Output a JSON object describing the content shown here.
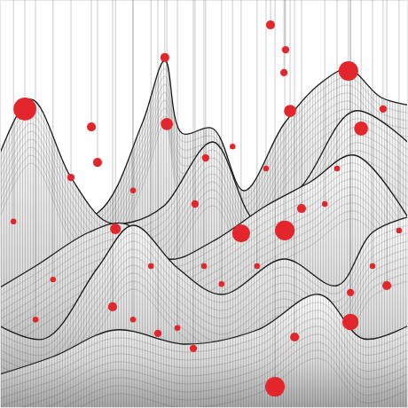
{
  "chart_data": {
    "type": "scatter",
    "x": [
      6.1,
      40.4,
      66.3,
      85.4,
      71.1,
      88.5,
      40.9,
      22.4,
      23.9,
      69.6,
      70.0,
      93.9,
      50.4,
      59.1,
      69.8,
      28.3,
      47.8,
      73.9,
      17.4,
      32.6,
      57.0,
      79.6,
      91.3,
      94.8,
      85.9,
      85.9,
      27.6,
      38.7,
      43.5,
      47.4,
      32.6,
      67.4,
      72.2,
      13.0,
      8.7,
      54.3,
      63.0,
      82.6,
      65.2,
      37.0,
      50.0,
      97.8,
      3.3
    ],
    "values": [
      73.3,
      85.9,
      93.9,
      82.6,
      72.8,
      68.5,
      69.6,
      68.9,
      60.2,
      82.2,
      87.8,
      73.3,
      61.3,
      42.8,
      43.5,
      43.9,
      50.0,
      48.9,
      56.5,
      53.3,
      64.1,
      50.0,
      34.8,
      30.0,
      21.1,
      28.3,
      24.8,
      18.3,
      19.6,
      14.6,
      21.7,
      5.2,
      17.4,
      31.5,
      21.7,
      30.4,
      34.8,
      58.7,
      58.7,
      34.8,
      34.8,
      43.5,
      45.7
    ],
    "sizes": [
      2.8,
      1.1,
      1.1,
      2.4,
      1.5,
      1.7,
      1.5,
      1.1,
      1.1,
      0.9,
      0.9,
      0.9,
      0.9,
      2.2,
      2.4,
      1.3,
      0.9,
      1.1,
      0.9,
      0.7,
      0.7,
      0.7,
      0.7,
      1.1,
      2.0,
      0.9,
      1.1,
      0.9,
      0.7,
      0.9,
      0.7,
      2.4,
      1.1,
      0.7,
      0.7,
      0.7,
      0.7,
      0.7,
      0.7,
      0.7,
      0.7,
      0.7,
      0.7
    ],
    "color": "#e3262b",
    "marker": "circle",
    "xlim": [
      0,
      100
    ],
    "ylim": [
      0,
      100
    ],
    "tick_labels": false
  }
}
